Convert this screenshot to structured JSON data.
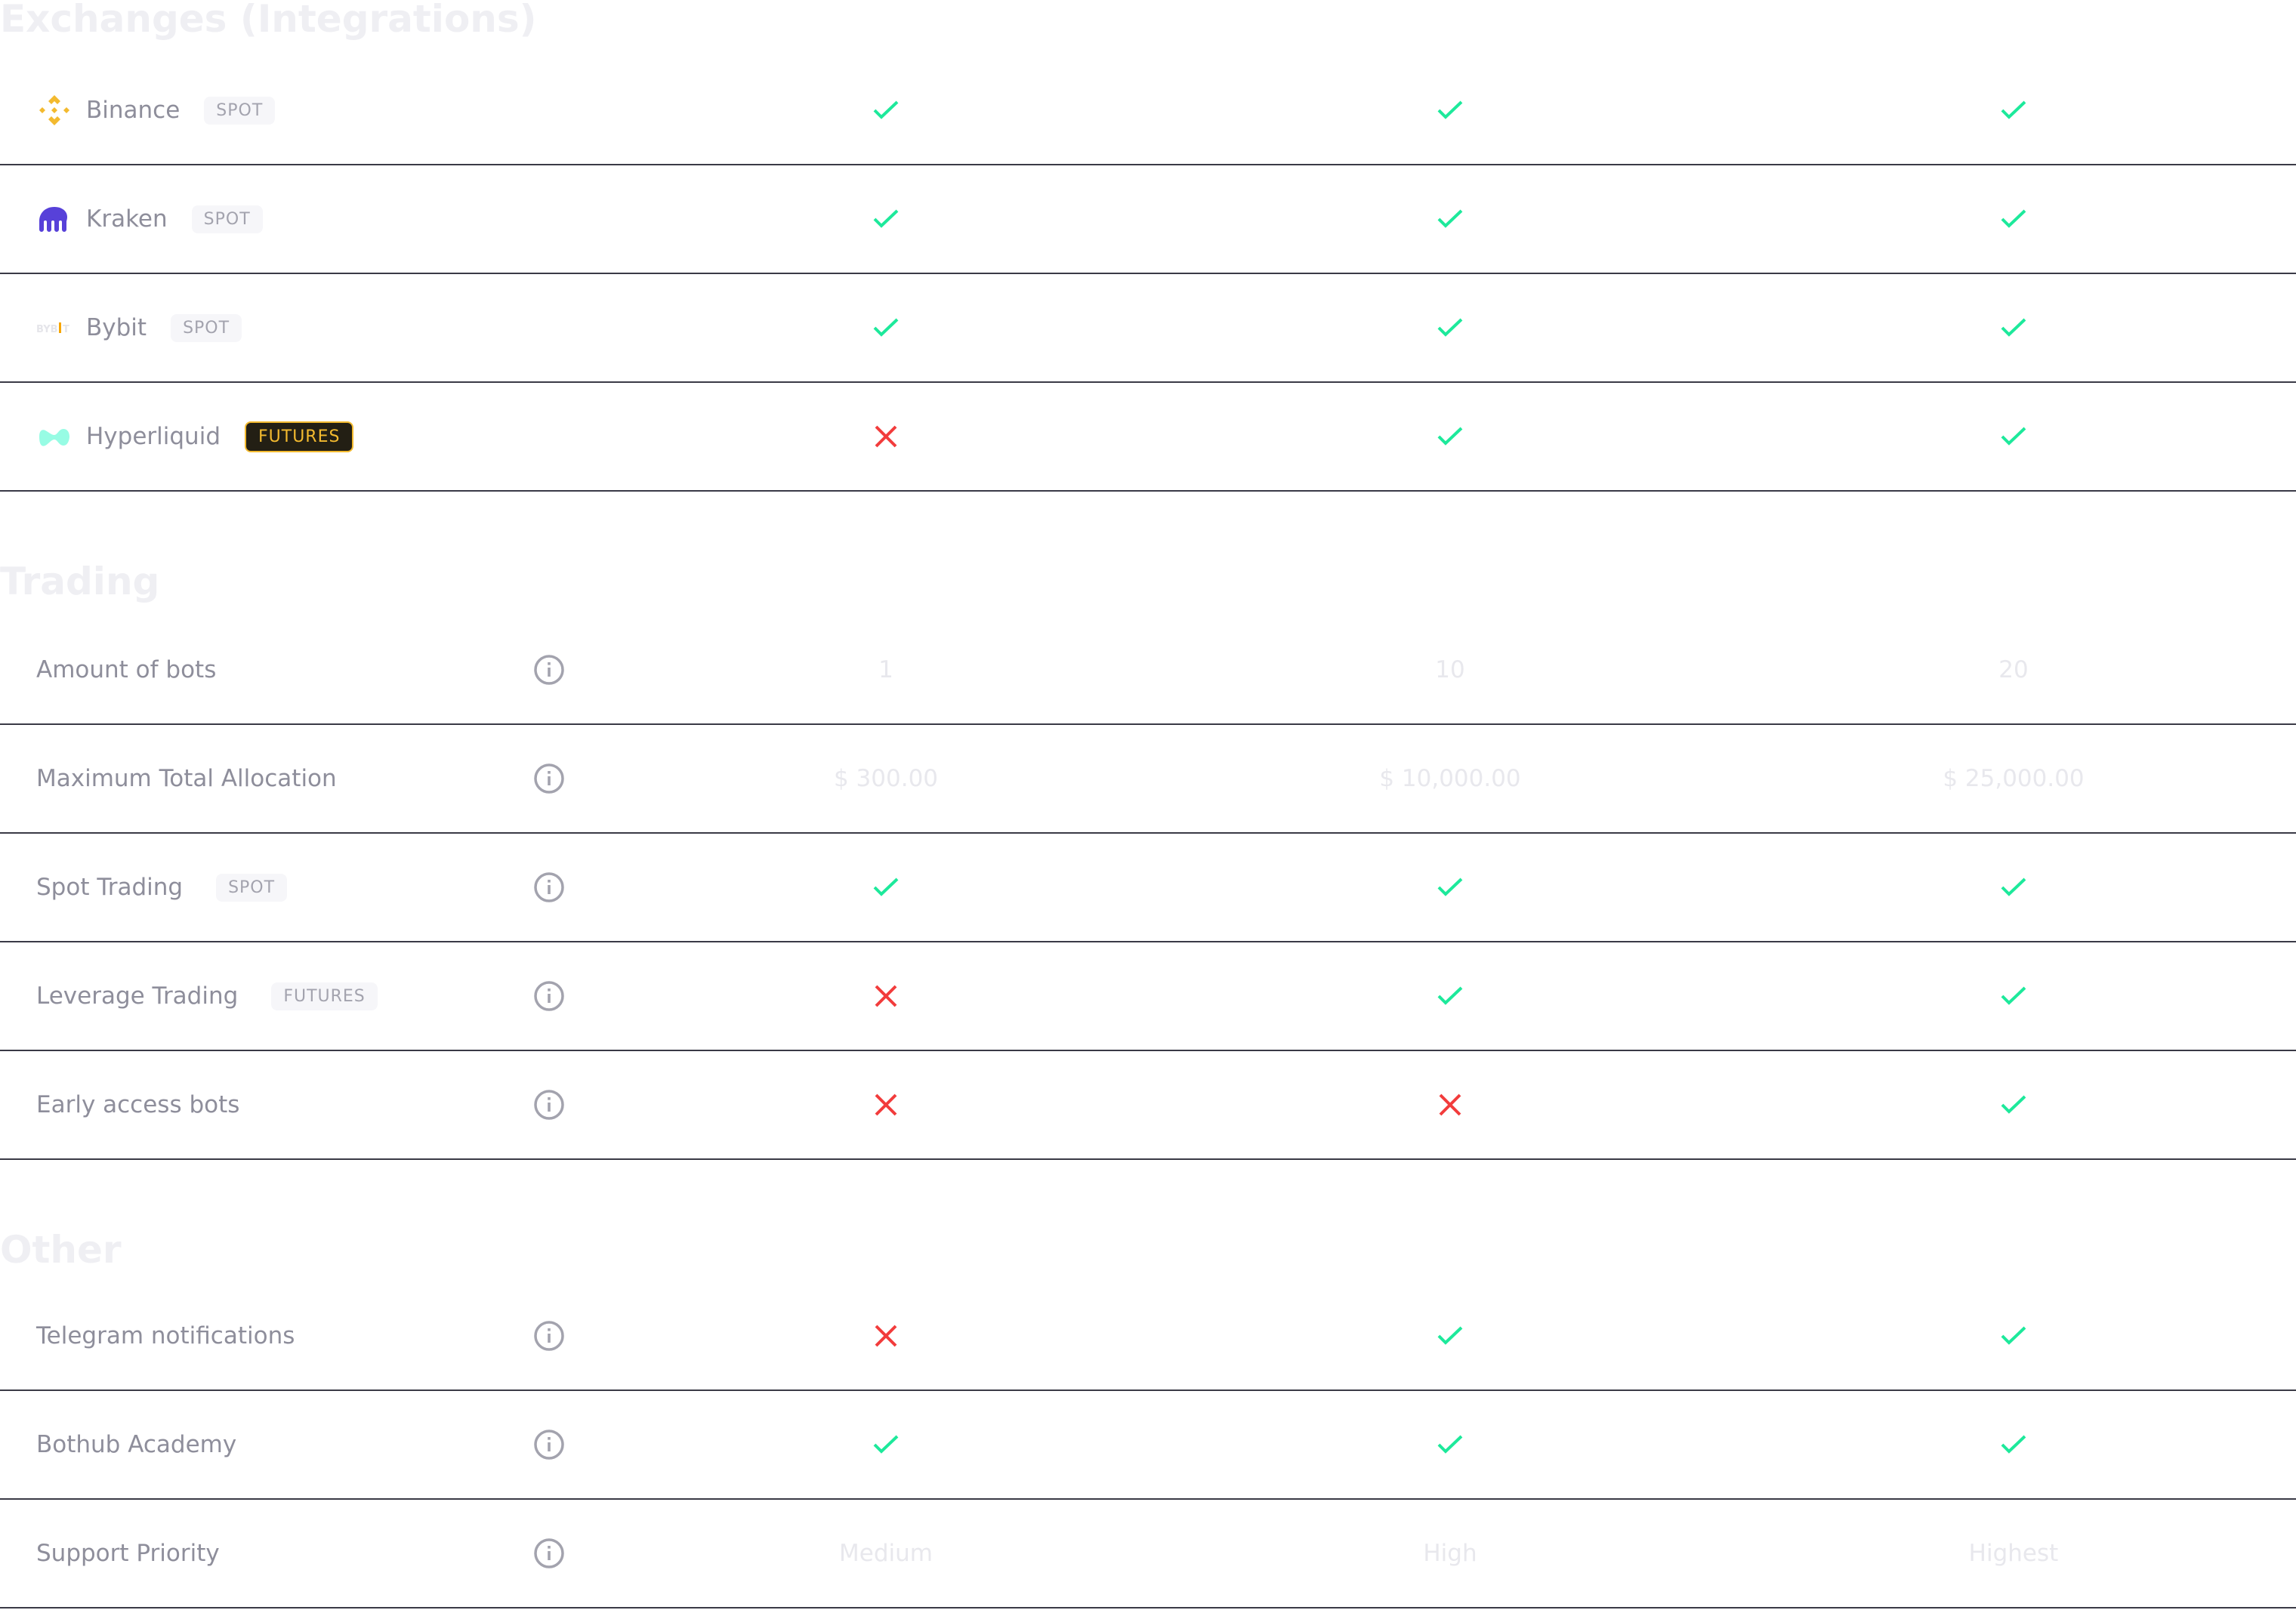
{
  "colors": {
    "check": "#1de99b",
    "cross": "#f23c3c",
    "divider": "#3a3a46",
    "label": "#8e8e9b",
    "futures_badge": "#f3ba2f"
  },
  "sections": [
    {
      "title": "Exchanges (Integrations)",
      "kind": "exchange",
      "rows": [
        {
          "name": "Binance",
          "logo": "binance-logo-icon",
          "badge": "SPOT",
          "badge_style": "light",
          "values": [
            true,
            true,
            true
          ]
        },
        {
          "name": "Kraken",
          "logo": "kraken-logo-icon",
          "badge": "SPOT",
          "badge_style": "light",
          "values": [
            true,
            true,
            true
          ]
        },
        {
          "name": "Bybit",
          "logo": "bybit-logo-icon",
          "logo_text": "BYBIT",
          "badge": "SPOT",
          "badge_style": "light",
          "values": [
            true,
            true,
            true
          ]
        },
        {
          "name": "Hyperliquid",
          "logo": "hyperliquid-logo-icon",
          "badge": "FUTURES",
          "badge_style": "dark",
          "values": [
            false,
            true,
            true
          ]
        }
      ]
    },
    {
      "title": "Trading",
      "kind": "feature",
      "rows": [
        {
          "name": "Amount of bots",
          "values": [
            "1",
            "10",
            "20"
          ]
        },
        {
          "name": "Maximum Total Allocation",
          "values": [
            "$ 300.00",
            "$ 10,000.00",
            "$ 25,000.00"
          ]
        },
        {
          "name": "Spot Trading",
          "badge": "SPOT",
          "values": [
            true,
            true,
            true
          ]
        },
        {
          "name": "Leverage Trading",
          "badge": "FUTURES",
          "values": [
            false,
            true,
            true
          ]
        },
        {
          "name": "Early access bots",
          "values": [
            false,
            false,
            true
          ]
        }
      ]
    },
    {
      "title": "Other",
      "kind": "feature",
      "rows": [
        {
          "name": "Telegram notifications",
          "values": [
            false,
            true,
            true
          ]
        },
        {
          "name": "Bothub Academy",
          "values": [
            true,
            true,
            true
          ]
        },
        {
          "name": "Support Priority",
          "values": [
            "Medium",
            "High",
            "Highest"
          ]
        }
      ]
    }
  ]
}
